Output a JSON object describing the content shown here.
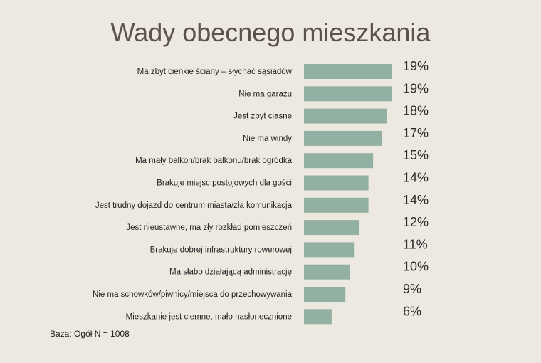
{
  "chart_data": {
    "type": "bar",
    "orientation": "horizontal",
    "title": "Wady obecnego mieszkania",
    "categories": [
      "Ma zbyt cienkie ściany – słychać sąsiadów",
      "Nie ma garażu",
      "Jest zbyt ciasne",
      "Nie ma windy",
      "Ma mały balkon/brak balkonu/brak ogródka",
      "Brakuje miejsc postojowych dla gości",
      "Jest trudny dojazd do centrum miasta/zła komunikacja",
      "Jest nieustawne, ma zły rozkład pomieszczeń",
      "Brakuje dobrej infrastruktury rowerowej",
      "Ma słabo działającą administrację",
      "Nie ma schowków/piwnicy/miejsca do przechowywania",
      "Mieszkanie jest ciemne, mało nasłonecznione"
    ],
    "values": [
      19,
      19,
      18,
      17,
      15,
      14,
      14,
      12,
      11,
      10,
      9,
      6
    ],
    "value_suffix": "%",
    "xlim": [
      0,
      19
    ],
    "grid": false,
    "bar_color": "#93b1a2",
    "footnote": "Baza: Ogół N = 1008"
  }
}
